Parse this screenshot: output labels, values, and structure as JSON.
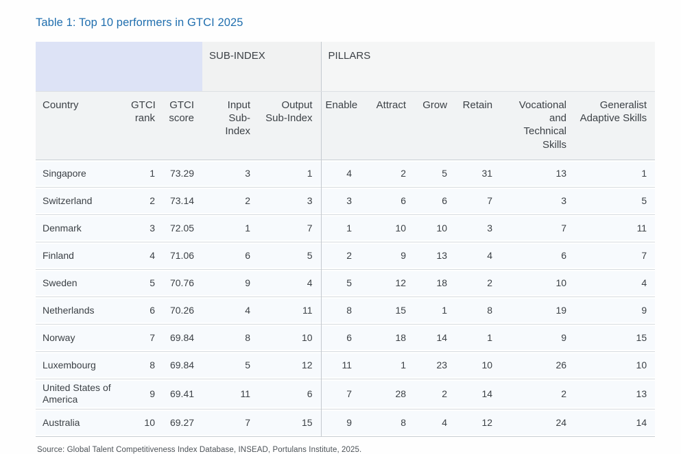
{
  "title": "Table 1: Top 10 performers in GTCI 2025",
  "colors": {
    "title_blue": "#1f6eae",
    "lavender_header": "#dde3f6",
    "gray_header": "#f1f3f4",
    "row_background": "#f7fafd",
    "border": "#c9ced3"
  },
  "table": {
    "group_headers": {
      "left": "",
      "sub_index": "SUB-INDEX",
      "pillars": "PILLARS"
    },
    "columns": [
      "Country",
      "GTCI rank",
      "GTCI score",
      "Input Sub-Index",
      "Output Sub-Index",
      "Enable",
      "Attract",
      "Grow",
      "Retain",
      "Vocational and Technical Skills",
      "Generalist Adaptive Skills"
    ],
    "column_keys": [
      "country",
      "gtci_rank",
      "gtci_score",
      "input_sub_index",
      "output_sub_index",
      "enable",
      "attract",
      "grow",
      "retain",
      "vocational_technical_skills",
      "generalist_adaptive_skills"
    ],
    "rows": [
      {
        "country": "Singapore",
        "gtci_rank": "1",
        "gtci_score": "73.29",
        "input_sub_index": "3",
        "output_sub_index": "1",
        "enable": "4",
        "attract": "2",
        "grow": "5",
        "retain": "31",
        "vocational_technical_skills": "13",
        "generalist_adaptive_skills": "1"
      },
      {
        "country": "Switzerland",
        "gtci_rank": "2",
        "gtci_score": "73.14",
        "input_sub_index": "2",
        "output_sub_index": "3",
        "enable": "3",
        "attract": "6",
        "grow": "6",
        "retain": "7",
        "vocational_technical_skills": "3",
        "generalist_adaptive_skills": "5"
      },
      {
        "country": "Denmark",
        "gtci_rank": "3",
        "gtci_score": "72.05",
        "input_sub_index": "1",
        "output_sub_index": "7",
        "enable": "1",
        "attract": "10",
        "grow": "10",
        "retain": "3",
        "vocational_technical_skills": "7",
        "generalist_adaptive_skills": "11"
      },
      {
        "country": "Finland",
        "gtci_rank": "4",
        "gtci_score": "71.06",
        "input_sub_index": "6",
        "output_sub_index": "5",
        "enable": "2",
        "attract": "9",
        "grow": "13",
        "retain": "4",
        "vocational_technical_skills": "6",
        "generalist_adaptive_skills": "7"
      },
      {
        "country": "Sweden",
        "gtci_rank": "5",
        "gtci_score": "70.76",
        "input_sub_index": "9",
        "output_sub_index": "4",
        "enable": "5",
        "attract": "12",
        "grow": "18",
        "retain": "2",
        "vocational_technical_skills": "10",
        "generalist_adaptive_skills": "4"
      },
      {
        "country": "Netherlands",
        "gtci_rank": "6",
        "gtci_score": "70.26",
        "input_sub_index": "4",
        "output_sub_index": "11",
        "enable": "8",
        "attract": "15",
        "grow": "1",
        "retain": "8",
        "vocational_technical_skills": "19",
        "generalist_adaptive_skills": "9"
      },
      {
        "country": "Norway",
        "gtci_rank": "7",
        "gtci_score": "69.84",
        "input_sub_index": "8",
        "output_sub_index": "10",
        "enable": "6",
        "attract": "18",
        "grow": "14",
        "retain": "1",
        "vocational_technical_skills": "9",
        "generalist_adaptive_skills": "15"
      },
      {
        "country": "Luxembourg",
        "gtci_rank": "8",
        "gtci_score": "69.84",
        "input_sub_index": "5",
        "output_sub_index": "12",
        "enable": "11",
        "attract": "1",
        "grow": "23",
        "retain": "10",
        "vocational_technical_skills": "26",
        "generalist_adaptive_skills": "10"
      },
      {
        "country": "United States of America",
        "gtci_rank": "9",
        "gtci_score": "69.41",
        "input_sub_index": "11",
        "output_sub_index": "6",
        "enable": "7",
        "attract": "28",
        "grow": "2",
        "retain": "14",
        "vocational_technical_skills": "2",
        "generalist_adaptive_skills": "13"
      },
      {
        "country": "Australia",
        "gtci_rank": "10",
        "gtci_score": "69.27",
        "input_sub_index": "7",
        "output_sub_index": "15",
        "enable": "9",
        "attract": "8",
        "grow": "4",
        "retain": "12",
        "vocational_technical_skills": "24",
        "generalist_adaptive_skills": "14"
      }
    ]
  },
  "source": "Source: Global Talent Competitiveness Index Database, INSEAD, Portulans Institute, 2025."
}
